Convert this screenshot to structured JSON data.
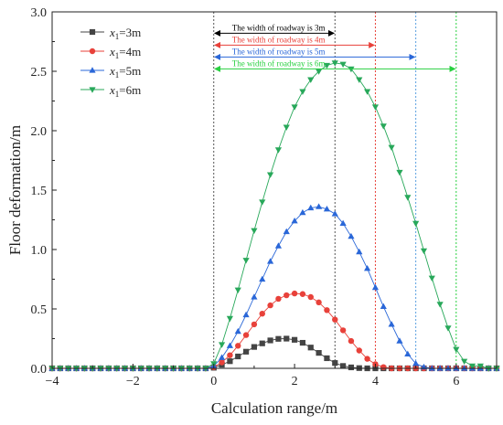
{
  "chart_data": {
    "type": "scatter",
    "title": "",
    "xlabel": "Calculation range/m",
    "ylabel": "Floor deformation/m",
    "xlim": [
      -4,
      7
    ],
    "ylim": [
      0,
      3.0
    ],
    "xticks": [
      -4,
      -2,
      0,
      2,
      4,
      6
    ],
    "yticks": [
      0,
      0.5,
      1.0,
      1.5,
      2.0,
      2.5,
      3.0
    ],
    "xtick_labels": [
      "−4",
      "−2",
      "0",
      "2",
      "4",
      "6"
    ],
    "ytick_labels": [
      "0.0",
      "0.5",
      "1.0",
      "1.5",
      "2.0",
      "2.5",
      "3.0"
    ],
    "grid": false,
    "legend_position": "top-left",
    "series": [
      {
        "name_var": "x",
        "name_sub": "1",
        "name_val": "=3m",
        "color": "#444444",
        "marker": "square",
        "x": [
          -4,
          -3.8,
          -3.6,
          -3.4,
          -3.2,
          -3.0,
          -2.8,
          -2.6,
          -2.4,
          -2.2,
          -2.0,
          -1.8,
          -1.6,
          -1.4,
          -1.2,
          -1.0,
          -0.8,
          -0.6,
          -0.4,
          -0.2,
          0,
          0.2,
          0.4,
          0.6,
          0.8,
          1.0,
          1.2,
          1.4,
          1.6,
          1.8,
          2.0,
          2.2,
          2.4,
          2.6,
          2.8,
          3.0,
          3.2,
          3.4,
          3.6,
          3.8,
          4.0,
          4.2,
          4.4,
          4.6,
          4.8,
          5.0,
          5.2,
          5.4,
          5.6,
          5.8,
          6.0,
          6.2,
          6.4,
          6.6,
          6.8,
          7.0
        ],
        "y": [
          0,
          0,
          0,
          0,
          0,
          0,
          0,
          0,
          0,
          0,
          0,
          0,
          0,
          0,
          0,
          0,
          0,
          0,
          0,
          0,
          0.005,
          0.03,
          0.06,
          0.1,
          0.14,
          0.18,
          0.21,
          0.235,
          0.248,
          0.25,
          0.24,
          0.215,
          0.175,
          0.13,
          0.085,
          0.045,
          0.02,
          0.008,
          0.002,
          0,
          0,
          0,
          0,
          0,
          0,
          0,
          0,
          0,
          0,
          0,
          0,
          0,
          0,
          0,
          0,
          0
        ]
      },
      {
        "name_var": "x",
        "name_sub": "1",
        "name_val": "=4m",
        "color": "#e8413a",
        "marker": "circle",
        "x": [
          -4,
          -3.8,
          -3.6,
          -3.4,
          -3.2,
          -3.0,
          -2.8,
          -2.6,
          -2.4,
          -2.2,
          -2.0,
          -1.8,
          -1.6,
          -1.4,
          -1.2,
          -1.0,
          -0.8,
          -0.6,
          -0.4,
          -0.2,
          0,
          0.2,
          0.4,
          0.6,
          0.8,
          1.0,
          1.2,
          1.4,
          1.6,
          1.8,
          2.0,
          2.2,
          2.4,
          2.6,
          2.8,
          3.0,
          3.2,
          3.4,
          3.6,
          3.8,
          4.0,
          4.2,
          4.4,
          4.6,
          4.8,
          5.0,
          5.2,
          5.4,
          5.6,
          5.8,
          6.0,
          6.2,
          6.4,
          6.6,
          6.8,
          7.0
        ],
        "y": [
          0,
          0,
          0,
          0,
          0,
          0,
          0,
          0,
          0,
          0,
          0,
          0,
          0,
          0,
          0,
          0,
          0,
          0,
          0,
          0,
          0.01,
          0.05,
          0.11,
          0.19,
          0.28,
          0.37,
          0.46,
          0.53,
          0.585,
          0.615,
          0.63,
          0.625,
          0.6,
          0.555,
          0.49,
          0.41,
          0.32,
          0.23,
          0.15,
          0.08,
          0.035,
          0.01,
          0,
          0,
          0,
          0,
          0,
          0,
          0,
          0,
          0,
          0,
          0,
          0,
          0,
          0
        ]
      },
      {
        "name_var": "x",
        "name_sub": "1",
        "name_val": "=5m",
        "color": "#2a67d8",
        "marker": "triangle-up",
        "x": [
          -4,
          -3.8,
          -3.6,
          -3.4,
          -3.2,
          -3.0,
          -2.8,
          -2.6,
          -2.4,
          -2.2,
          -2.0,
          -1.8,
          -1.6,
          -1.4,
          -1.2,
          -1.0,
          -0.8,
          -0.6,
          -0.4,
          -0.2,
          0,
          0.2,
          0.4,
          0.6,
          0.8,
          1.0,
          1.2,
          1.4,
          1.6,
          1.8,
          2.0,
          2.2,
          2.4,
          2.6,
          2.8,
          3.0,
          3.2,
          3.4,
          3.6,
          3.8,
          4.0,
          4.2,
          4.4,
          4.6,
          4.8,
          5.0,
          5.2,
          5.4,
          5.6,
          5.8,
          6.0,
          6.2,
          6.4,
          6.6,
          6.8,
          7.0
        ],
        "y": [
          0,
          0,
          0,
          0,
          0,
          0,
          0,
          0,
          0,
          0,
          0,
          0,
          0,
          0,
          0,
          0,
          0,
          0,
          0,
          0,
          0.02,
          0.09,
          0.19,
          0.31,
          0.45,
          0.6,
          0.75,
          0.9,
          1.03,
          1.15,
          1.24,
          1.31,
          1.35,
          1.36,
          1.34,
          1.3,
          1.22,
          1.11,
          0.98,
          0.84,
          0.68,
          0.52,
          0.37,
          0.23,
          0.12,
          0.04,
          0.01,
          0,
          0,
          0,
          0,
          0,
          0,
          0,
          0,
          0
        ]
      },
      {
        "name_var": "x",
        "name_sub": "1",
        "name_val": "=6m",
        "color": "#28a85a",
        "marker": "triangle-down",
        "x": [
          -4,
          -3.8,
          -3.6,
          -3.4,
          -3.2,
          -3.0,
          -2.8,
          -2.6,
          -2.4,
          -2.2,
          -2.0,
          -1.8,
          -1.6,
          -1.4,
          -1.2,
          -1.0,
          -0.8,
          -0.6,
          -0.4,
          -0.2,
          0,
          0.2,
          0.4,
          0.6,
          0.8,
          1.0,
          1.2,
          1.4,
          1.6,
          1.8,
          2.0,
          2.2,
          2.4,
          2.6,
          2.8,
          3.0,
          3.2,
          3.4,
          3.6,
          3.8,
          4.0,
          4.2,
          4.4,
          4.6,
          4.8,
          5.0,
          5.2,
          5.4,
          5.6,
          5.8,
          6.0,
          6.2,
          6.4,
          6.6,
          6.8,
          7.0
        ],
        "y": [
          0,
          0,
          0,
          0,
          0,
          0,
          0,
          0,
          0,
          0,
          0,
          0,
          0,
          0,
          0,
          0,
          0,
          0,
          0,
          0,
          0.04,
          0.2,
          0.42,
          0.66,
          0.91,
          1.16,
          1.4,
          1.63,
          1.84,
          2.03,
          2.2,
          2.33,
          2.43,
          2.5,
          2.55,
          2.57,
          2.56,
          2.52,
          2.43,
          2.33,
          2.2,
          2.04,
          1.86,
          1.65,
          1.44,
          1.22,
          0.99,
          0.76,
          0.54,
          0.34,
          0.16,
          0.06,
          0.02,
          0.02,
          0,
          0
        ]
      }
    ],
    "roadway_annotations": [
      {
        "text": "The width of roadway is 3m",
        "end": 3,
        "y": 2.82,
        "color": "#000000",
        "vline_color": "#555555"
      },
      {
        "text": "The width of roadway is 4m",
        "end": 4,
        "y": 2.72,
        "color": "#e8413a",
        "vline_color": "#e8413a"
      },
      {
        "text": "The width of roadway is 5m",
        "end": 5,
        "y": 2.62,
        "color": "#2a67d8",
        "vline_color": "#5aa0e0"
      },
      {
        "text": "The width of roadway is 6m",
        "end": 6,
        "y": 2.52,
        "color": "#28d040",
        "vline_color": "#28d040"
      }
    ],
    "start_vline_x": 0
  }
}
